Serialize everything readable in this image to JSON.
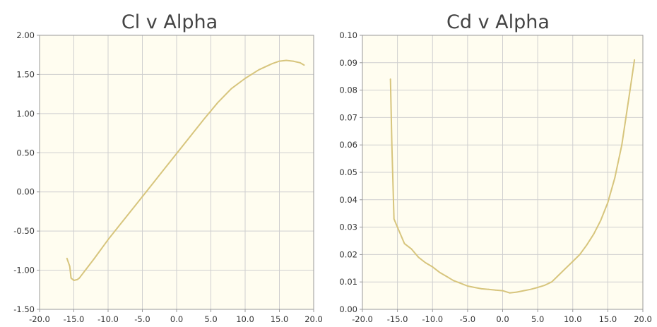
{
  "chart_data": [
    {
      "type": "line",
      "title": "Cl v Alpha",
      "xlim": [
        -20,
        20
      ],
      "ylim": [
        -1.5,
        2.0
      ],
      "x_ticks": [
        "-20.0",
        "-15.0",
        "-10.0",
        "-5.0",
        "0.0",
        "5.0",
        "10.0",
        "15.0",
        "20.0"
      ],
      "y_ticks": [
        "-1.50",
        "-1.00",
        "-0.50",
        "0.00",
        "0.50",
        "1.00",
        "1.50",
        "2.00"
      ],
      "grid": true,
      "colors": {
        "series": "#d7c57d",
        "plot_bg": "#fffdf0",
        "grid": "#cfcfcf"
      },
      "series": [
        {
          "x": [
            -16.0,
            -15.6,
            -15.4,
            -15.0,
            -14.5,
            -14.2,
            -13.5,
            -12.0,
            -10.0,
            -8.0,
            -6.0,
            -4.0,
            -2.0,
            0.0,
            2.0,
            4.0,
            6.0,
            8.0,
            10.0,
            12.0,
            14.0,
            15.0,
            16.0,
            17.0,
            18.0,
            18.6
          ],
          "y": [
            -0.85,
            -0.95,
            -1.1,
            -1.13,
            -1.12,
            -1.1,
            -1.02,
            -0.85,
            -0.61,
            -0.39,
            -0.17,
            0.05,
            0.27,
            0.49,
            0.71,
            0.93,
            1.14,
            1.32,
            1.45,
            1.56,
            1.64,
            1.67,
            1.68,
            1.67,
            1.65,
            1.62
          ]
        }
      ]
    },
    {
      "type": "line",
      "title": "Cd v Alpha",
      "xlim": [
        -20,
        20
      ],
      "ylim": [
        0,
        0.1
      ],
      "x_ticks": [
        "-20.0",
        "-15.0",
        "-10.0",
        "-5.0",
        "0.0",
        "5.0",
        "10.0",
        "15.0",
        "20.0"
      ],
      "y_ticks": [
        "0.00",
        "0.01",
        "0.02",
        "0.03",
        "0.04",
        "0.05",
        "0.06",
        "0.07",
        "0.08",
        "0.09",
        "0.10"
      ],
      "grid": true,
      "colors": {
        "series": "#d7c57d",
        "plot_bg": "#fffdf0",
        "grid": "#cfcfcf"
      },
      "series": [
        {
          "x": [
            -16.0,
            -15.8,
            -15.5,
            -15.0,
            -14.0,
            -13.0,
            -12.0,
            -11.0,
            -10.0,
            -9.0,
            -8.0,
            -7.0,
            -6.0,
            -5.0,
            -4.0,
            -3.0,
            -2.0,
            -1.0,
            0.0,
            1.0,
            2.0,
            3.0,
            4.0,
            5.0,
            6.0,
            7.0,
            8.0,
            9.0,
            10.0,
            11.0,
            12.0,
            13.0,
            14.0,
            15.0,
            16.0,
            17.0,
            18.0,
            18.8
          ],
          "y": [
            0.084,
            0.06,
            0.033,
            0.03,
            0.024,
            0.022,
            0.019,
            0.017,
            0.0155,
            0.0135,
            0.012,
            0.0105,
            0.0095,
            0.0085,
            0.008,
            0.0075,
            0.0073,
            0.007,
            0.0068,
            0.006,
            0.0063,
            0.0068,
            0.0073,
            0.008,
            0.0088,
            0.01,
            0.0125,
            0.015,
            0.0175,
            0.02,
            0.0235,
            0.0275,
            0.0325,
            0.039,
            0.048,
            0.06,
            0.077,
            0.091
          ]
        }
      ]
    }
  ]
}
